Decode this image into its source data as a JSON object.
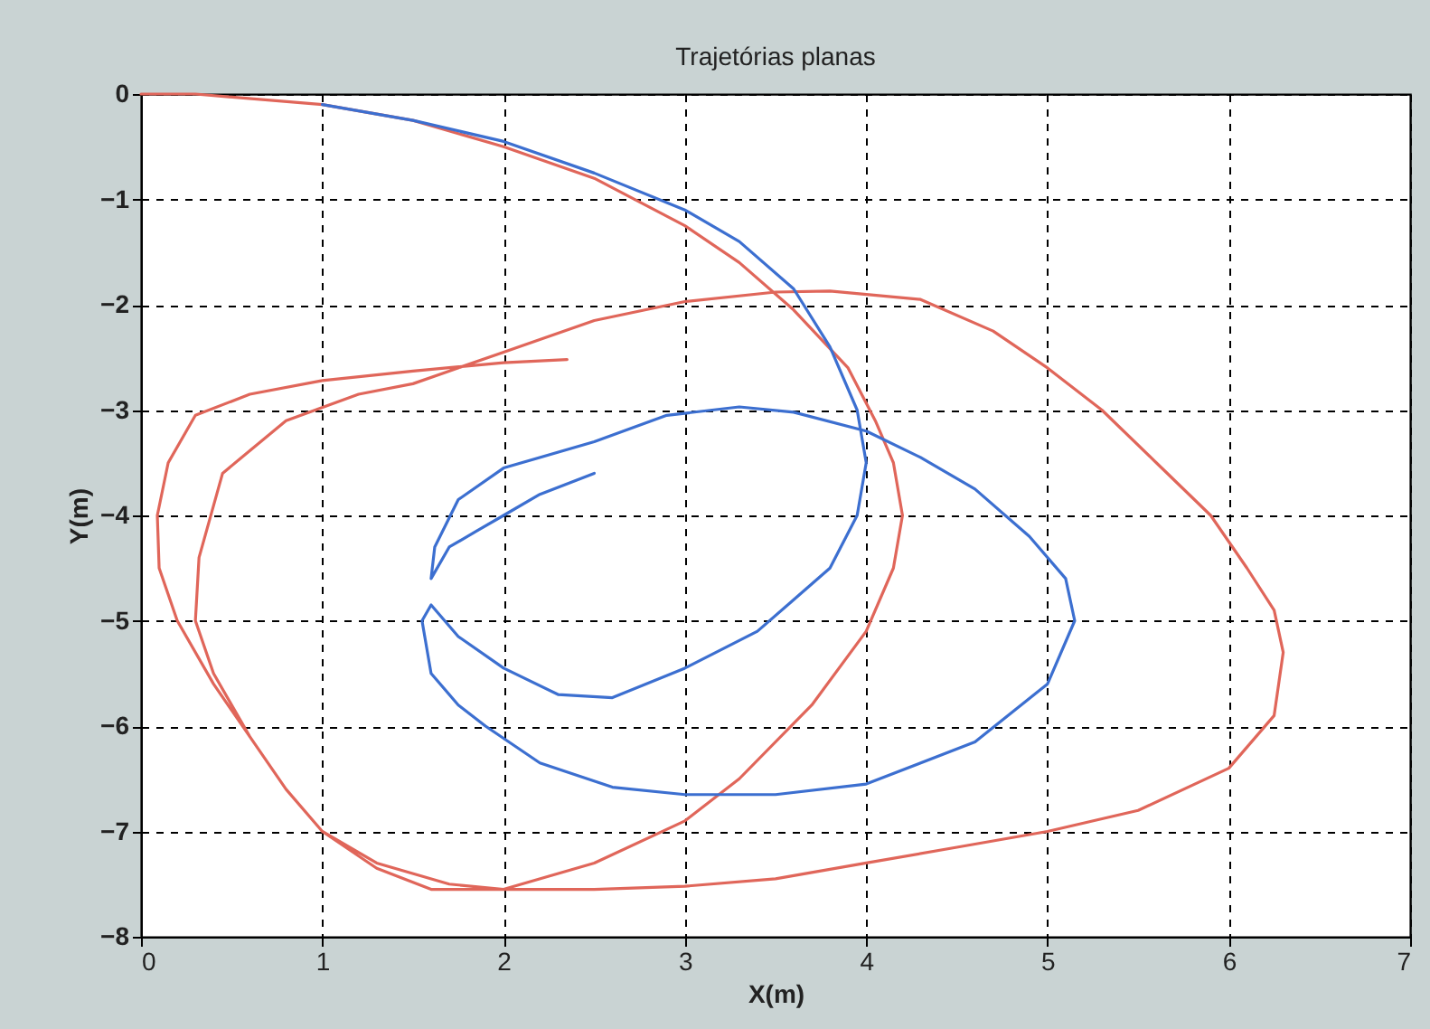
{
  "chart_data": {
    "type": "line",
    "title": "Trajetórias planas",
    "xlabel": "X(m)",
    "ylabel": "Y(m)",
    "xlim": [
      0,
      7
    ],
    "ylim": [
      -8,
      0
    ],
    "xticks": [
      0,
      1,
      2,
      3,
      4,
      5,
      6,
      7
    ],
    "yticks": [
      0,
      -1,
      -2,
      -3,
      -4,
      -5,
      -6,
      -7,
      -8
    ],
    "grid": true,
    "marker": "none",
    "line_style": "solid",
    "series": [
      {
        "color": "#e0665a",
        "x": [
          0,
          0.3,
          1,
          1.5,
          2,
          2.5,
          3,
          3.3,
          3.6,
          3.9,
          4.05,
          4.15,
          4.2,
          4.15,
          4.0,
          3.7,
          3.3,
          3.0,
          2.5,
          2.0,
          1.6,
          1.3,
          1.0,
          0.8,
          0.6,
          0.4,
          0.3,
          0.32,
          0.45,
          0.8,
          1.2,
          1.5,
          2.0,
          2.5,
          3.0,
          3.5,
          3.8,
          4.3,
          4.7,
          5.0,
          5.3,
          5.6,
          5.9,
          6.1,
          6.25,
          6.3,
          6.25,
          6.0,
          5.5,
          5.0,
          4.5,
          4.0,
          3.5,
          3.0,
          2.5,
          2.0,
          1.7,
          1.3,
          1.0,
          0.8,
          0.6,
          0.4,
          0.2,
          0.1,
          0.09,
          0.15,
          0.3,
          0.6,
          1.0,
          1.5,
          2.0,
          2.35
        ],
        "values": [
          0,
          0,
          -0.1,
          -0.25,
          -0.5,
          -0.8,
          -1.25,
          -1.6,
          -2.05,
          -2.6,
          -3.1,
          -3.5,
          -4.0,
          -4.5,
          -5.1,
          -5.8,
          -6.5,
          -6.9,
          -7.3,
          -7.55,
          -7.55,
          -7.35,
          -7.0,
          -6.6,
          -6.1,
          -5.5,
          -5.0,
          -4.4,
          -3.6,
          -3.1,
          -2.85,
          -2.75,
          -2.45,
          -2.15,
          -1.97,
          -1.88,
          -1.87,
          -1.95,
          -2.25,
          -2.6,
          -3.0,
          -3.5,
          -4.0,
          -4.5,
          -4.9,
          -5.3,
          -5.9,
          -6.4,
          -6.8,
          -7.0,
          -7.15,
          -7.3,
          -7.45,
          -7.52,
          -7.55,
          -7.55,
          -7.5,
          -7.3,
          -7.0,
          -6.6,
          -6.1,
          -5.6,
          -5.0,
          -4.5,
          -4.0,
          -3.5,
          -3.05,
          -2.85,
          -2.72,
          -2.63,
          -2.55,
          -2.52
        ]
      },
      {
        "color": "#3c6fd0",
        "x": [
          1.0,
          1.5,
          2.0,
          2.5,
          3.0,
          3.3,
          3.6,
          3.8,
          3.95,
          4.0,
          3.95,
          3.8,
          3.6,
          3.4,
          3.0,
          2.6,
          2.3,
          2.0,
          1.75,
          1.6,
          1.55,
          1.6,
          1.75,
          1.9,
          2.2,
          2.6,
          3.0,
          3.5,
          4.0,
          4.6,
          5.0,
          5.15,
          5.1,
          4.9,
          4.6,
          4.3,
          4.0,
          3.6,
          3.3,
          2.9,
          2.5,
          2.0,
          1.75,
          1.62,
          1.6,
          1.7,
          1.85,
          2.0,
          2.2,
          2.5
        ],
        "values": [
          -0.1,
          -0.25,
          -0.45,
          -0.75,
          -1.1,
          -1.4,
          -1.85,
          -2.4,
          -3.0,
          -3.5,
          -4.0,
          -4.5,
          -4.8,
          -5.1,
          -5.45,
          -5.73,
          -5.7,
          -5.45,
          -5.15,
          -4.85,
          -5.0,
          -5.5,
          -5.8,
          -6.0,
          -6.35,
          -6.58,
          -6.65,
          -6.65,
          -6.55,
          -6.15,
          -5.6,
          -5.0,
          -4.6,
          -4.2,
          -3.75,
          -3.45,
          -3.2,
          -3.02,
          -2.97,
          -3.05,
          -3.3,
          -3.55,
          -3.85,
          -4.3,
          -4.6,
          -4.3,
          -4.15,
          -4.0,
          -3.8,
          -3.6
        ]
      }
    ]
  }
}
